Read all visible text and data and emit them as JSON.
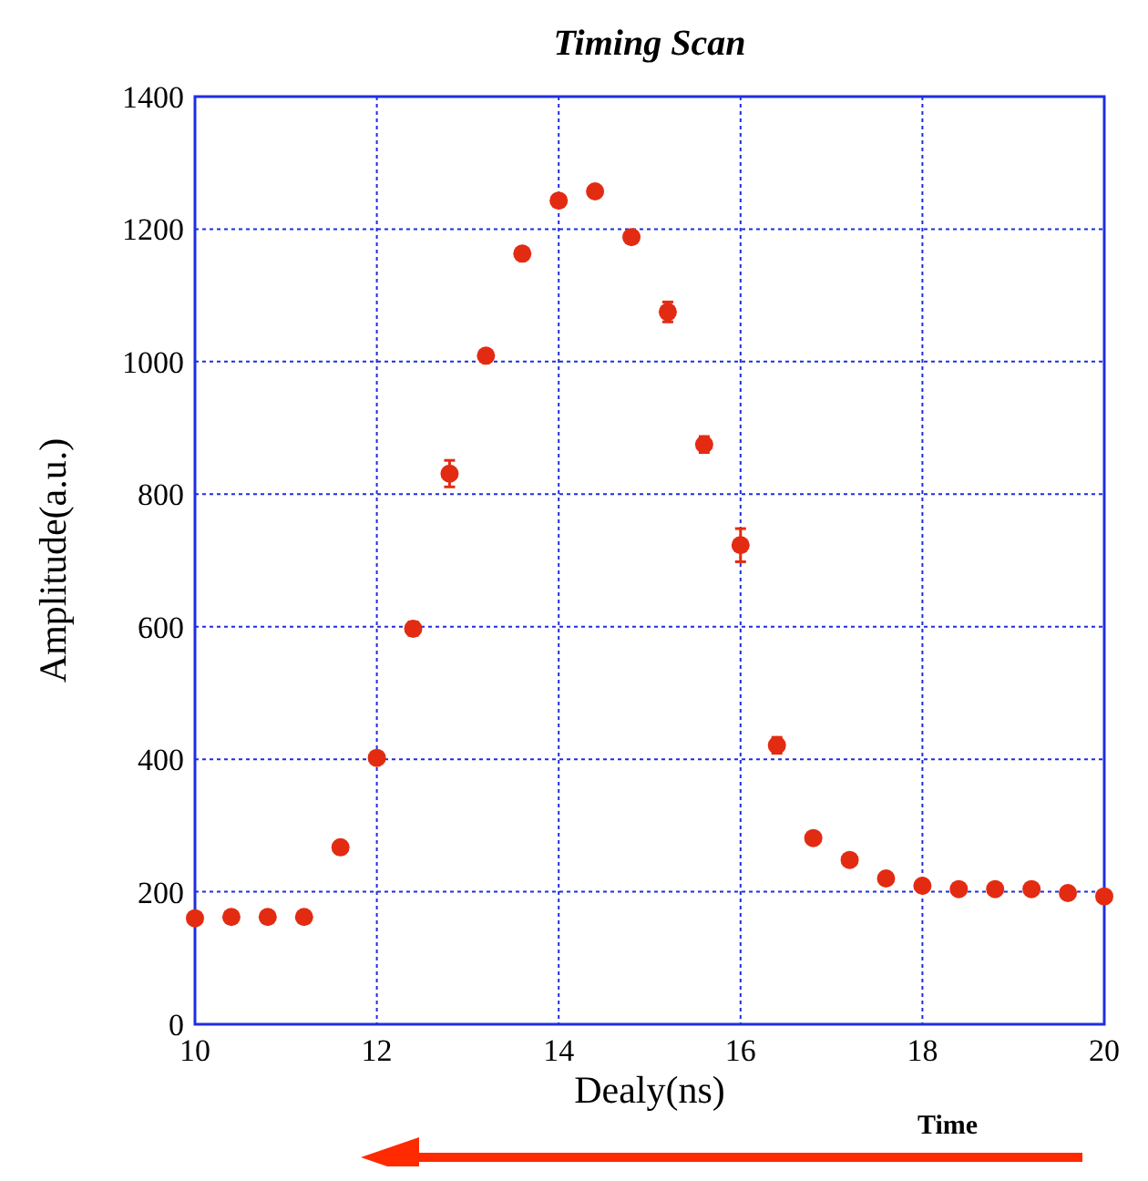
{
  "chart_data": {
    "type": "scatter",
    "title": "Timing Scan",
    "xlabel": "Dealy(ns)",
    "ylabel": "Amplitude(a.u.)",
    "x": [
      10,
      10.4,
      10.8,
      11.2,
      11.6,
      12,
      12.4,
      12.8,
      13.2,
      13.6,
      14,
      14.4,
      14.8,
      15.2,
      15.6,
      16,
      16.4,
      16.8,
      17.2,
      17.6,
      18,
      18.4,
      18.8,
      19.2,
      19.6,
      20
    ],
    "series": [
      {
        "color": "#e32b12",
        "values": [
          160,
          162,
          162,
          162,
          267,
          402,
          597,
          831,
          1009,
          1163,
          1243,
          1257,
          1188,
          1075,
          875,
          723,
          421,
          281,
          248,
          220,
          209,
          204,
          204,
          204,
          198,
          193
        ],
        "errors": [
          null,
          null,
          null,
          null,
          null,
          null,
          10,
          20,
          null,
          null,
          null,
          null,
          null,
          15,
          12,
          25,
          12,
          null,
          null,
          null,
          null,
          null,
          null,
          null,
          null,
          null
        ]
      }
    ],
    "xlim": [
      10,
      20
    ],
    "ylim": [
      0,
      1400
    ],
    "xticks": [
      10,
      12,
      14,
      16,
      18,
      20
    ],
    "yticks": [
      0,
      200,
      400,
      600,
      800,
      1000,
      1200,
      1400
    ],
    "grid": true,
    "marker": "circle",
    "annotations": [
      "Time"
    ]
  }
}
